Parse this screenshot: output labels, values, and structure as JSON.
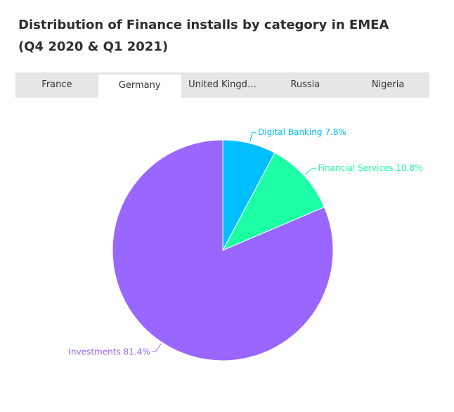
{
  "title": {
    "line1": "Distribution of Finance installs by category in EMEA",
    "line2": "(Q4 2020 & Q1 2021)"
  },
  "tabs": [
    {
      "label": "France",
      "active": false
    },
    {
      "label": "Germany",
      "active": true
    },
    {
      "label": "United Kingd…",
      "active": false
    },
    {
      "label": "Russia",
      "active": false
    },
    {
      "label": "Nigeria",
      "active": false
    }
  ],
  "chart_data": {
    "type": "pie",
    "slices": [
      {
        "label": "Digital Banking",
        "value": 7.8,
        "display": "Digital Banking 7.8%",
        "color": "#00bfff"
      },
      {
        "label": "Financial Services",
        "value": 10.8,
        "display": "Financial Services 10.8%",
        "color": "#1dffa5"
      },
      {
        "label": "Investments",
        "value": 81.4,
        "display": "Investments 81.4%",
        "color": "#9966ff"
      }
    ],
    "start_angle": "12 o'clock",
    "direction": "clockwise"
  }
}
